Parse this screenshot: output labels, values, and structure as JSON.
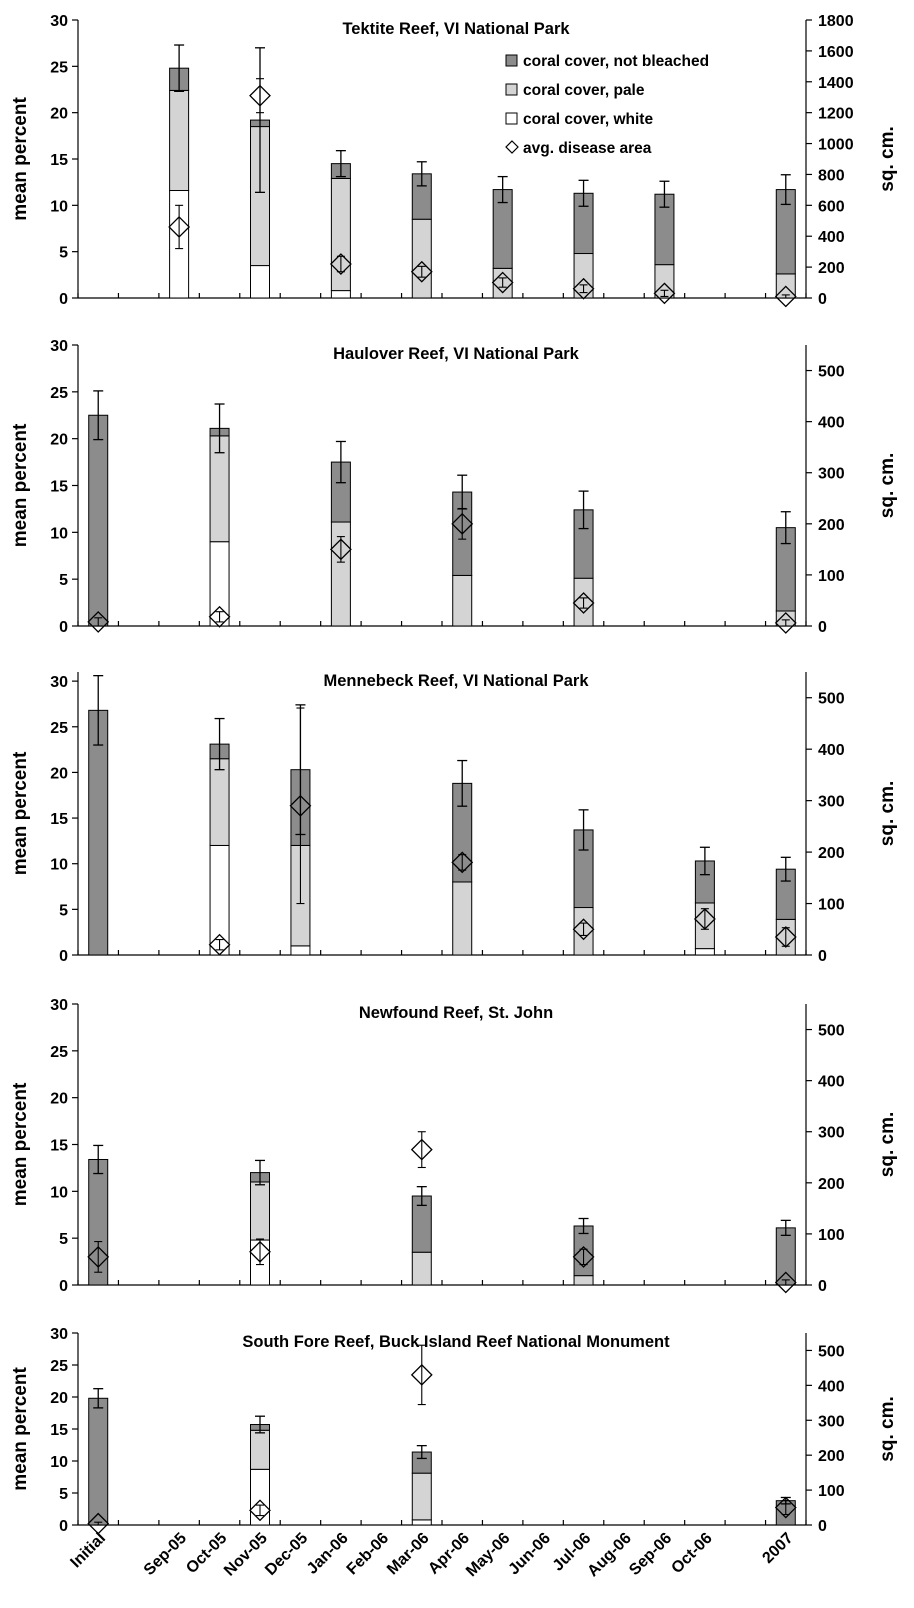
{
  "chart_data": {
    "type": "bar",
    "categories": [
      "Initial",
      "Sep-05",
      "Oct-05",
      "Nov-05",
      "Dec-05",
      "Jan-06",
      "Feb-06",
      "Mar-06",
      "Apr-06",
      "May-06",
      "Jun-06",
      "Jul-06",
      "Aug-06",
      "Sep-06",
      "Oct-06",
      "2007"
    ],
    "legend": [
      {
        "label": "coral cover, not bleached",
        "color": "#8c8c8c",
        "marker": "square"
      },
      {
        "label": "coral cover, pale",
        "color": "#d4d4d4",
        "marker": "square"
      },
      {
        "label": "coral cover, white",
        "color": "#ffffff",
        "marker": "square"
      },
      {
        "label": "avg. disease area",
        "color": "#ffffff",
        "marker": "diamond"
      }
    ],
    "colors": {
      "not_bleached": "#8c8c8c",
      "pale": "#d4d4d4",
      "white": "#ffffff"
    },
    "ylabel": "mean percent",
    "y2label": "sq. cm.",
    "panels": [
      {
        "title": "Tektite Reef, VI National Park",
        "ylim": [
          0,
          30
        ],
        "yticks": [
          0,
          5,
          10,
          15,
          20,
          25,
          30
        ],
        "y2lim": [
          0,
          1800
        ],
        "y2ticks": [
          0,
          200,
          400,
          600,
          800,
          1000,
          1200,
          1400,
          1600,
          1800
        ],
        "show_legend": true,
        "bars": [
          {
            "x": 2,
            "white": 11.6,
            "pale": 10.8,
            "not_bleached": 2.4,
            "err": 2.5
          },
          {
            "x": 4,
            "white": 3.5,
            "pale": 15.0,
            "not_bleached": 0.7,
            "err": 7.8
          },
          {
            "x": 6,
            "white": 0.8,
            "pale": 12.1,
            "not_bleached": 1.6,
            "err": 1.4
          },
          {
            "x": 8,
            "white": 0.0,
            "pale": 8.5,
            "not_bleached": 4.9,
            "err": 1.3
          },
          {
            "x": 10,
            "white": 0.0,
            "pale": 3.2,
            "not_bleached": 8.5,
            "err": 1.4
          },
          {
            "x": 12,
            "white": 0.0,
            "pale": 4.8,
            "not_bleached": 6.5,
            "err": 1.4
          },
          {
            "x": 14,
            "white": 0.0,
            "pale": 3.6,
            "not_bleached": 7.6,
            "err": 1.4
          },
          {
            "x": 17,
            "white": 0.0,
            "pale": 2.6,
            "not_bleached": 9.1,
            "err": 1.6
          }
        ],
        "disease": [
          {
            "x": 2,
            "value": 460,
            "err": 140
          },
          {
            "x": 4,
            "value": 1310,
            "err": 110
          },
          {
            "x": 6,
            "value": 220,
            "err": 50
          },
          {
            "x": 8,
            "value": 170,
            "err": 35
          },
          {
            "x": 10,
            "value": 100,
            "err": 30
          },
          {
            "x": 12,
            "value": 60,
            "err": 25
          },
          {
            "x": 14,
            "value": 30,
            "err": 20
          },
          {
            "x": 17,
            "value": 10,
            "err": 10
          }
        ]
      },
      {
        "title": "Haulover Reef, VI National Park",
        "ylim": [
          0,
          30
        ],
        "yticks": [
          0,
          5,
          10,
          15,
          20,
          25,
          30
        ],
        "y2lim": [
          0,
          550
        ],
        "y2ticks": [
          0,
          100,
          200,
          300,
          400,
          500
        ],
        "show_legend": false,
        "bars": [
          {
            "x": 0,
            "white": 0.0,
            "pale": 0.0,
            "not_bleached": 22.5,
            "err": 2.6
          },
          {
            "x": 3,
            "white": 9.0,
            "pale": 11.3,
            "not_bleached": 0.8,
            "err": 2.6
          },
          {
            "x": 6,
            "white": 0.0,
            "pale": 11.1,
            "not_bleached": 6.4,
            "err": 2.2
          },
          {
            "x": 9,
            "white": 0.0,
            "pale": 5.4,
            "not_bleached": 8.9,
            "err": 1.8
          },
          {
            "x": 12,
            "white": 0.0,
            "pale": 5.1,
            "not_bleached": 7.3,
            "err": 2.0
          },
          {
            "x": 17,
            "white": 0.0,
            "pale": 1.6,
            "not_bleached": 8.9,
            "err": 1.7
          }
        ],
        "disease": [
          {
            "x": 0,
            "value": 8,
            "err": 8
          },
          {
            "x": 3,
            "value": 18,
            "err": 10
          },
          {
            "x": 6,
            "value": 150,
            "err": 25
          },
          {
            "x": 9,
            "value": 200,
            "err": 30
          },
          {
            "x": 12,
            "value": 45,
            "err": 10
          },
          {
            "x": 17,
            "value": 6,
            "err": 6
          }
        ]
      },
      {
        "title": "Mennebeck Reef, VI National Park",
        "ylim": [
          0,
          31
        ],
        "yticks": [
          0,
          5,
          10,
          15,
          20,
          25,
          30
        ],
        "y2lim": [
          0,
          550
        ],
        "y2ticks": [
          0,
          100,
          200,
          300,
          400,
          500
        ],
        "show_legend": false,
        "bars": [
          {
            "x": 0,
            "white": 0.0,
            "pale": 0.0,
            "not_bleached": 26.8,
            "err": 3.8
          },
          {
            "x": 3,
            "white": 12.0,
            "pale": 9.5,
            "not_bleached": 1.6,
            "err": 2.8
          },
          {
            "x": 5,
            "white": 1.0,
            "pale": 11.0,
            "not_bleached": 8.3,
            "err": 7.1
          },
          {
            "x": 9,
            "white": 0.0,
            "pale": 8.0,
            "not_bleached": 10.8,
            "err": 2.5
          },
          {
            "x": 12,
            "white": 0.0,
            "pale": 5.2,
            "not_bleached": 8.5,
            "err": 2.2
          },
          {
            "x": 15,
            "white": 0.7,
            "pale": 5.0,
            "not_bleached": 4.6,
            "err": 1.5
          },
          {
            "x": 17,
            "white": 0.0,
            "pale": 3.9,
            "not_bleached": 5.5,
            "err": 1.3
          }
        ],
        "disease": [
          {
            "x": 3,
            "value": 20,
            "err": 10
          },
          {
            "x": 5,
            "value": 290,
            "err": 190
          },
          {
            "x": 9,
            "value": 180,
            "err": 15
          },
          {
            "x": 12,
            "value": 50,
            "err": 12
          },
          {
            "x": 15,
            "value": 70,
            "err": 20
          },
          {
            "x": 17,
            "value": 35,
            "err": 18
          }
        ]
      },
      {
        "title": "Newfound Reef, St. John",
        "ylim": [
          0,
          30
        ],
        "yticks": [
          0,
          5,
          10,
          15,
          20,
          25,
          30
        ],
        "y2lim": [
          0,
          550
        ],
        "y2ticks": [
          0,
          100,
          200,
          300,
          400,
          500
        ],
        "show_legend": false,
        "bars": [
          {
            "x": 0,
            "white": 0.0,
            "pale": 0.0,
            "not_bleached": 13.4,
            "err": 1.5
          },
          {
            "x": 4,
            "white": 4.8,
            "pale": 6.2,
            "not_bleached": 1.0,
            "err": 1.3
          },
          {
            "x": 8,
            "white": 0.0,
            "pale": 3.5,
            "not_bleached": 6.0,
            "err": 1.0
          },
          {
            "x": 12,
            "white": 0.0,
            "pale": 1.0,
            "not_bleached": 5.3,
            "err": 0.8
          },
          {
            "x": 17,
            "white": 0.0,
            "pale": 0.0,
            "not_bleached": 6.1,
            "err": 0.8
          }
        ],
        "disease": [
          {
            "x": 0,
            "value": 55,
            "err": 30
          },
          {
            "x": 4,
            "value": 65,
            "err": 25
          },
          {
            "x": 8,
            "value": 265,
            "err": 35
          },
          {
            "x": 12,
            "value": 55,
            "err": 15
          },
          {
            "x": 17,
            "value": 5,
            "err": 5
          }
        ]
      },
      {
        "title": "South Fore Reef, Buck Island Reef National Monument",
        "ylim": [
          0,
          30
        ],
        "yticks": [
          0,
          5,
          10,
          15,
          20,
          25,
          30
        ],
        "y2lim": [
          0,
          550
        ],
        "y2ticks": [
          0,
          100,
          200,
          300,
          400,
          500
        ],
        "show_legend": false,
        "bars": [
          {
            "x": 0,
            "white": 0.0,
            "pale": 0.0,
            "not_bleached": 19.8,
            "err": 1.5
          },
          {
            "x": 4,
            "white": 8.7,
            "pale": 6.1,
            "not_bleached": 0.9,
            "err": 1.3
          },
          {
            "x": 8,
            "white": 0.8,
            "pale": 7.3,
            "not_bleached": 3.3,
            "err": 1.0
          },
          {
            "x": 17,
            "white": 0.0,
            "pale": 0.0,
            "not_bleached": 3.8,
            "err": 0.5
          }
        ],
        "disease": [
          {
            "x": 0,
            "value": 4,
            "err": 4
          },
          {
            "x": 4,
            "value": 42,
            "err": 15
          },
          {
            "x": 8,
            "value": 430,
            "err": 85
          },
          {
            "x": 17,
            "value": 50,
            "err": 20
          }
        ]
      }
    ]
  }
}
